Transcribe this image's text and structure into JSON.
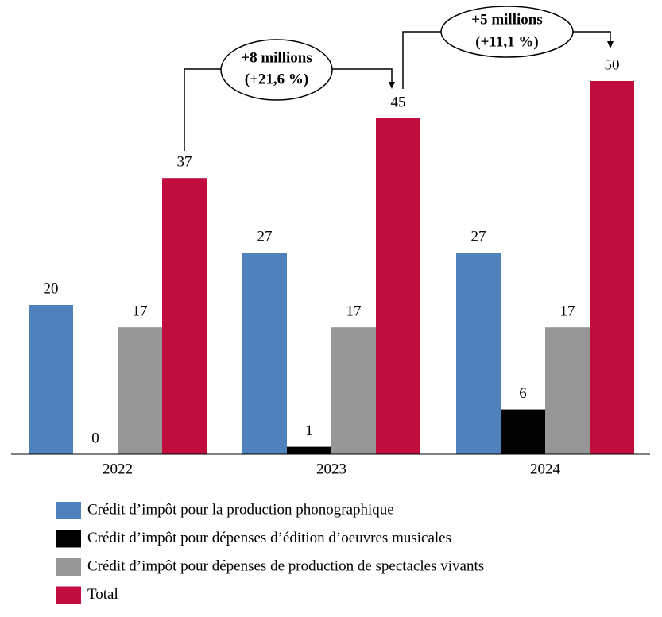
{
  "chart_data": {
    "type": "bar",
    "categories": [
      "2022",
      "2023",
      "2024"
    ],
    "series": [
      {
        "name": "Crédit d’impôt pour la production phonographique",
        "color": "#4f81bd",
        "values": [
          20,
          27,
          27
        ]
      },
      {
        "name": "Crédit d’impôt pour dépenses d’édition d’oeuvres musicales",
        "color": "#000000",
        "values": [
          0,
          1,
          6
        ]
      },
      {
        "name": "Crédit d’impôt pour dépenses de production de spectacles vivants",
        "color": "#969696",
        "values": [
          17,
          17,
          17
        ]
      },
      {
        "name": "Total",
        "color": "#c00d3d",
        "values": [
          37,
          45,
          50
        ]
      }
    ],
    "annotations": [
      {
        "lines": [
          "+8 millions",
          "(+21,6 %)"
        ]
      },
      {
        "lines": [
          "+5 millions",
          "(+11,1 %)"
        ]
      }
    ],
    "legend": "bottom-left"
  }
}
